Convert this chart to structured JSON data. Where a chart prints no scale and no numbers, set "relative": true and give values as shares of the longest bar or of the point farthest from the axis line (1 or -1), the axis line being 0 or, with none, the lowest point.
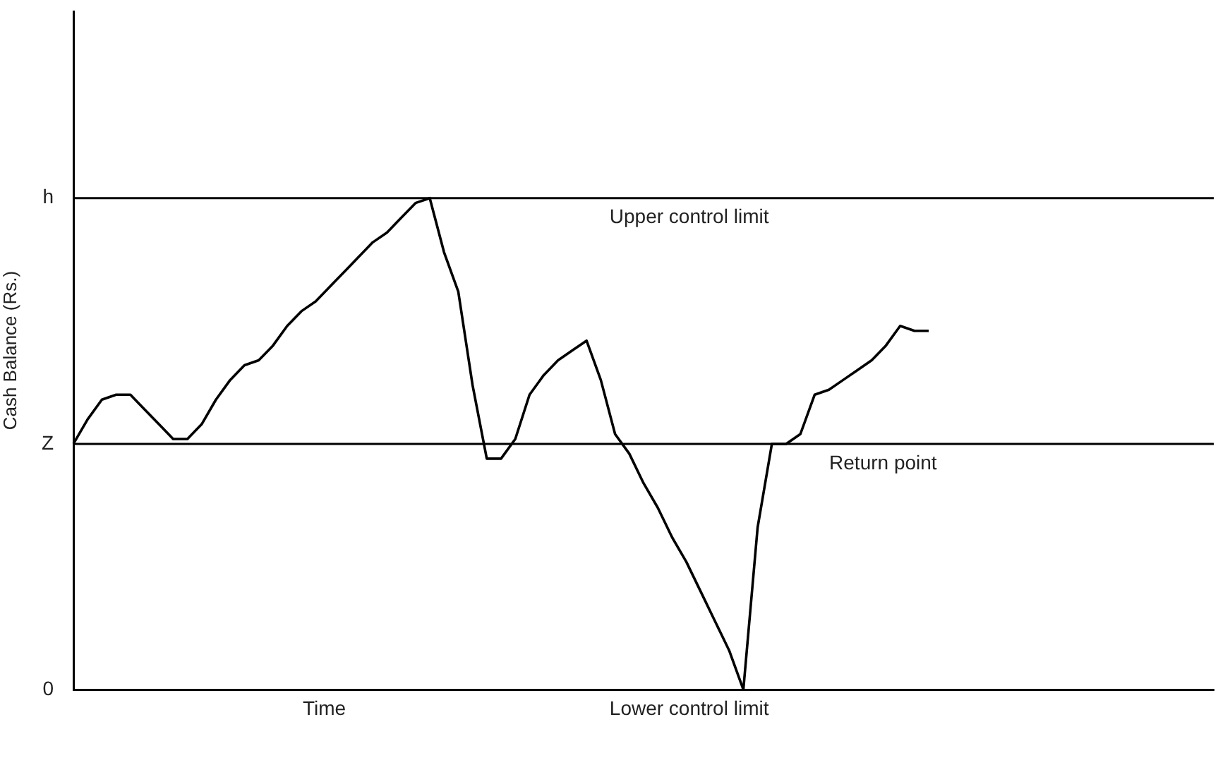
{
  "chart_data": {
    "type": "line",
    "xlabel": "Time",
    "ylabel": "Cash Balance (Rs.)",
    "relative": true,
    "categories": [
      null,
      null,
      null,
      null,
      null,
      null,
      null,
      null,
      null,
      null,
      null,
      null,
      null,
      null,
      null,
      null,
      null,
      null,
      null,
      null,
      null,
      null,
      null,
      null,
      null,
      null,
      null,
      null,
      null,
      null,
      null,
      null,
      null,
      null,
      null,
      null,
      null,
      null,
      null,
      null,
      null,
      null,
      null,
      null,
      null,
      null,
      null,
      null,
      null,
      null,
      null,
      null,
      null,
      null,
      null,
      null,
      null,
      null,
      null,
      null,
      null,
      null,
      null,
      null,
      null,
      null,
      null,
      null,
      null,
      null,
      null,
      null,
      null,
      null,
      null,
      null,
      null,
      null,
      null,
      null,
      null
    ],
    "series": [
      {
        "color": "#000000",
        "values": [
          0.5,
          0.55,
          0.59,
          0.6,
          0.6,
          0.57,
          0.54,
          0.51,
          0.51,
          0.54,
          0.59,
          0.63,
          0.66,
          0.67,
          0.7,
          0.74,
          0.77,
          0.79,
          0.82,
          0.85,
          0.88,
          0.91,
          0.93,
          0.96,
          0.99,
          1.0,
          0.89,
          0.81,
          0.62,
          0.47,
          0.47,
          0.51,
          0.6,
          0.64,
          0.67,
          0.69,
          0.71,
          0.63,
          0.52,
          0.48,
          0.42,
          0.37,
          0.31,
          0.26,
          0.2,
          0.14,
          0.08,
          0,
          0.33,
          0.5,
          0.5,
          0.52,
          0.6,
          0.61,
          0.63,
          0.65,
          0.67,
          0.7,
          0.74,
          0.73,
          0.73,
          null,
          null,
          null,
          null,
          null,
          null,
          null,
          null,
          null,
          null,
          null,
          null,
          null,
          null,
          null,
          null,
          null,
          null,
          null,
          null
        ]
      }
    ],
    "ref_lines": [
      {
        "axis": "y",
        "value": 1,
        "label": "Upper control limit"
      },
      {
        "axis": "y",
        "value": 0.5,
        "label": "Return point"
      }
    ],
    "annotations": [
      "h",
      "Z",
      "0",
      "Lower control limit"
    ],
    "grid": false,
    "legend": false,
    "marker": "none",
    "line_style": "solid"
  }
}
